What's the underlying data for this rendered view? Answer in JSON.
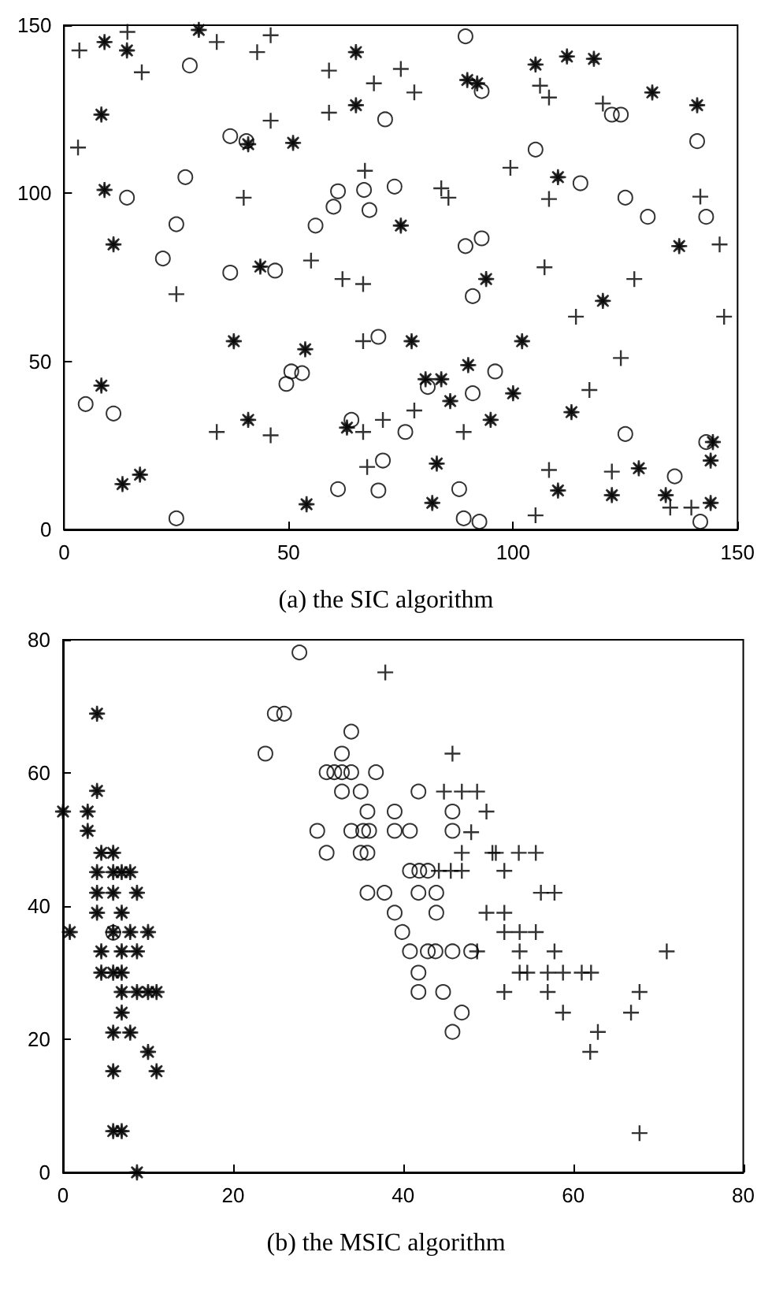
{
  "chart_data": [
    {
      "type": "scatter",
      "title": "(a) the SIC algorithm",
      "xlim": [
        0,
        150
      ],
      "ylim": [
        0,
        150
      ],
      "xticks": [
        0,
        50,
        100,
        150
      ],
      "yticks": [
        0,
        50,
        100,
        150
      ],
      "grid": false,
      "series": [
        {
          "color": "#000000",
          "marker": "cross",
          "x": [
            3.4,
            14.1,
            17.3,
            3.1,
            34,
            43,
            46,
            46,
            40,
            55,
            62,
            66.6,
            25,
            34,
            46,
            59,
            59,
            69,
            67,
            66.6,
            71,
            66.6,
            67.5,
            75,
            78,
            106,
            108,
            120,
            99.4,
            84,
            85.6,
            108,
            141.7,
            146,
            107,
            127,
            114,
            147,
            124,
            117,
            78,
            89,
            108,
            122,
            135,
            139.7,
            105
          ],
          "values": [
            142.5,
            148,
            136,
            113.6,
            145,
            142,
            147,
            121.6,
            98.7,
            80,
            74.5,
            73,
            70,
            29,
            28,
            136.5,
            124,
            132.7,
            106.7,
            56,
            32.6,
            29,
            18.6,
            137,
            130,
            132,
            128.5,
            126.7,
            107.6,
            101.5,
            98.7,
            98.3,
            99,
            84.8,
            78,
            74.5,
            63.3,
            63.3,
            51,
            41.5,
            35.4,
            29,
            17.7,
            17.2,
            6.5,
            6.5,
            4.2
          ]
        },
        {
          "color": "#000000",
          "marker": "circle",
          "x": [
            28,
            37,
            40.6,
            27,
            14,
            25,
            22,
            37,
            47,
            56,
            60,
            61,
            66.8,
            68,
            71.5,
            73.6,
            4.8,
            11,
            25,
            49.5,
            50.6,
            53,
            70,
            64,
            71,
            61,
            70,
            89.4,
            93,
            105,
            115,
            125,
            130,
            122,
            124,
            141,
            143,
            89.4,
            93,
            91,
            96,
            91,
            81,
            76,
            125,
            136,
            143,
            88,
            89,
            92.5,
            141.7
          ],
          "values": [
            138,
            117,
            115.5,
            104.8,
            98.7,
            90.8,
            80.6,
            76.4,
            77,
            90.4,
            96,
            100.6,
            101,
            95,
            122,
            102,
            37.3,
            34.5,
            3.3,
            43.3,
            47,
            46.5,
            57.3,
            32.6,
            20.5,
            12,
            11.6,
            146.7,
            130.4,
            113,
            103,
            98.7,
            93,
            123.4,
            123.4,
            115.5,
            93,
            84.3,
            86.6,
            69.4,
            47,
            40.5,
            42.4,
            29,
            28.4,
            15.8,
            26,
            12,
            3.3,
            2.3,
            2.3
          ]
        },
        {
          "color": "#000000",
          "marker": "star",
          "x": [
            9,
            14,
            30,
            8.3,
            9,
            11,
            41,
            51,
            43.7,
            37.8,
            53.7,
            8.3,
            41,
            16.9,
            13,
            54,
            63,
            65,
            65,
            105,
            112,
            118,
            131,
            141,
            89.8,
            92,
            110,
            75,
            94,
            120,
            137,
            77.4,
            102,
            90,
            80.5,
            84,
            86,
            100,
            95,
            113,
            83,
            82,
            110,
            122,
            128,
            134,
            144.5,
            144,
            144
          ],
          "values": [
            145,
            142.5,
            148.6,
            123.4,
            101,
            84.8,
            114.6,
            115,
            78.2,
            56,
            53.6,
            42.8,
            32.6,
            16.3,
            13.5,
            7.5,
            30.3,
            142,
            126.2,
            138.3,
            140.7,
            140,
            130,
            126.2,
            133.7,
            132.7,
            104.8,
            90.4,
            74.5,
            68,
            84.3,
            56,
            56,
            48.9,
            44.7,
            44.7,
            38.2,
            40.5,
            32.6,
            34.9,
            19.6,
            7.9,
            11.6,
            10.2,
            18.2,
            10.2,
            26,
            20.5,
            7.9
          ]
        }
      ]
    },
    {
      "type": "scatter",
      "title": "(b) the MSIC algorithm",
      "xlim": [
        0,
        80
      ],
      "ylim": [
        0,
        80
      ],
      "xticks": [
        0,
        20,
        40,
        60,
        80
      ],
      "yticks": [
        0,
        20,
        40,
        60,
        80
      ],
      "grid": false,
      "series": [
        {
          "color": "#000000",
          "marker": "star",
          "x": [
            4,
            4,
            0,
            2.9,
            2.9,
            4,
            4.5,
            5.9,
            4,
            5.9,
            6.9,
            7.9,
            4,
            5.9,
            8.7,
            4,
            6.9,
            0.8,
            5.9,
            7.9,
            10,
            4.5,
            6.9,
            8.7,
            4.5,
            5.9,
            6.9,
            6.9,
            8.7,
            10,
            11,
            6.9,
            5.9,
            7.9,
            10,
            5.9,
            11,
            5.9,
            6.9,
            8.7
          ],
          "values": [
            68.9,
            57.3,
            54.2,
            54.2,
            51.3,
            null,
            48,
            48,
            45.1,
            45.1,
            45.1,
            45.1,
            42,
            42,
            42,
            39,
            39,
            36.1,
            36.1,
            36.1,
            36.1,
            33.2,
            33.2,
            33.2,
            30,
            30,
            30,
            27.1,
            27.1,
            27.1,
            27.1,
            24,
            21,
            21,
            18.1,
            15.2,
            15.2,
            6.2,
            6.2,
            0
          ]
        },
        {
          "color": "#000000",
          "marker": "circle",
          "x": [
            5.9,
            27.8,
            24.9,
            26,
            33.9,
            23.8,
            32.8,
            31,
            31.9,
            32.8,
            33.9,
            36.8,
            32.8,
            35,
            41.8,
            35.8,
            39,
            45.8,
            29.9,
            33.9,
            35.3,
            36,
            39,
            40.8,
            45.8,
            31,
            35,
            35.8,
            40.8,
            41.9,
            42.9,
            35.8,
            37.8,
            41.8,
            43.9,
            39,
            43.9,
            39.9,
            40.8,
            42.9,
            43.8,
            45.8,
            48,
            41.8,
            41.8,
            44.7,
            46.9,
            45.8
          ],
          "values": [
            36,
            78.1,
            68.9,
            68.9,
            66.2,
            62.9,
            62.9,
            60.1,
            60.1,
            60.1,
            60.1,
            60.1,
            57.2,
            57.2,
            57.2,
            54.2,
            54.2,
            54.2,
            51.3,
            51.3,
            51.3,
            51.3,
            51.3,
            51.3,
            51.3,
            48,
            48,
            48,
            45.3,
            45.3,
            45.3,
            42,
            42,
            42,
            42,
            39,
            39,
            36.1,
            33.2,
            33.2,
            33.2,
            33.2,
            33.2,
            30,
            27.1,
            27.1,
            24,
            21.1
          ]
        },
        {
          "color": "#000000",
          "marker": "cross",
          "x": [
            37.9,
            45.8,
            44.8,
            46.9,
            48.7,
            49.8,
            48,
            46.9,
            50.5,
            44.2,
            45.6,
            46.9,
            49.8,
            48.7,
            50.9,
            53.6,
            55.6,
            51.9,
            56.2,
            57.8,
            51.9,
            51.9,
            53.7,
            55.6,
            53.7,
            57.8,
            71,
            53.7,
            54.6,
            57,
            58.8,
            61,
            62.1,
            51.9,
            57,
            67.8,
            58.8,
            66.8,
            62.9,
            62,
            67.8
          ],
          "values": [
            75.1,
            62.9,
            57.2,
            57.2,
            57.2,
            54.2,
            51.1,
            48,
            48,
            45.3,
            45.3,
            45.3,
            39,
            33.2,
            48,
            48,
            48,
            45.3,
            42,
            42,
            39,
            36.1,
            36.1,
            36.1,
            33.2,
            33.2,
            33.2,
            30,
            30,
            30,
            30,
            30,
            30,
            27.1,
            27.1,
            27.1,
            24,
            24,
            21.1,
            18.1,
            5.9
          ]
        }
      ]
    }
  ]
}
